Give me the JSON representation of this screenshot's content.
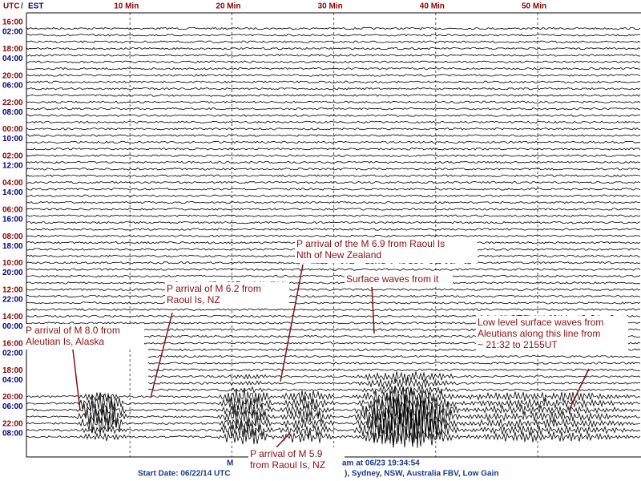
{
  "header": {
    "utc_label": "UTC",
    "separator": "/",
    "est_label": "EST",
    "minute_labels": [
      "10 Min",
      "20 Min",
      "30 Min",
      "40 Min",
      "50 Min"
    ]
  },
  "time_labels": {
    "utc": [
      "16:00",
      "18:00",
      "20:00",
      "22:00",
      "00:00",
      "02:00",
      "04:00",
      "06:00",
      "08:00",
      "10:00",
      "12:00",
      "14:00",
      "16:00",
      "18:00",
      "20:00",
      "22:00"
    ],
    "est": [
      "02:00",
      "04:00",
      "06:00",
      "08:00",
      "10:00",
      "12:00",
      "14:00",
      "16:00",
      "18:00",
      "20:00",
      "22:00",
      "00:00",
      "02:00",
      "04:00",
      "06:00",
      "08:00"
    ]
  },
  "annotations": [
    {
      "lines": [
        "P arrival of M 8.0 from",
        "Aleutian Is, Alaska"
      ]
    },
    {
      "lines": [
        "P arrival of M 6.2 from",
        "Raoul Is, NZ"
      ]
    },
    {
      "lines": [
        "P arrival of the M 6.9 from Raoul Is",
        "Nth of New Zealand"
      ]
    },
    {
      "lines": [
        "Surface waves from it"
      ]
    },
    {
      "lines": [
        "Low level surface waves from",
        "Aleutians along this line from",
        "~ 21:32 to 2155UT"
      ]
    },
    {
      "lines": [
        "P arrival of M 5.9",
        "from Raoul Is, NZ"
      ]
    }
  ],
  "footer": {
    "fragment_1": "M",
    "fragment_2": "am at 06/23 19:34:54",
    "start_date": "Start Date: 06/22/14 UTC",
    "fragment_3": "), Sydney, NSW, Australia  FBV, Low Gain"
  }
}
